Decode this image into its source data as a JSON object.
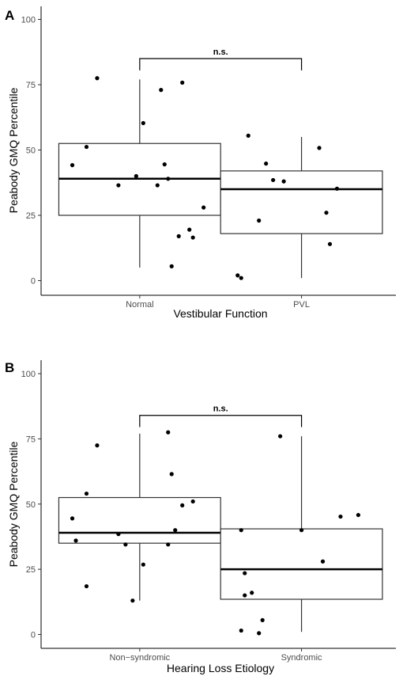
{
  "chart_data": [
    {
      "type": "box",
      "panel_label": "A",
      "xlabel": "Vestibular Function",
      "ylabel": "Peabody GMQ Percentile",
      "ylim": [
        0,
        100
      ],
      "yticks": [
        0,
        25,
        50,
        75,
        100
      ],
      "categories": [
        "Normal",
        "PVL"
      ],
      "significance": {
        "label": "n.s.",
        "from": "Normal",
        "to": "PVL",
        "y": 85
      },
      "boxes": [
        {
          "category": "Normal",
          "min": 5,
          "q1": 25,
          "median": 39,
          "q3": 52.5,
          "max": 77
        },
        {
          "category": "PVL",
          "min": 1,
          "q1": 18,
          "median": 35,
          "q3": 42,
          "max": 55
        }
      ],
      "points": [
        {
          "category": "Normal",
          "values": [
            77.5,
            75.8,
            73,
            60.3,
            51.2,
            44.2,
            44.5,
            40,
            39,
            36.5,
            36.5,
            28,
            19.5,
            17,
            16.5,
            5.5
          ],
          "jitter": [
            -0.12,
            0.12,
            0.06,
            0.01,
            -0.15,
            -0.19,
            0.07,
            -0.01,
            0.08,
            -0.06,
            0.05,
            0.18,
            0.14,
            0.11,
            0.15,
            0.09
          ]
        }
      ],
      "points_pvl": {
        "category": "PVL",
        "values": [
          55.5,
          50.8,
          44.8,
          38.5,
          38,
          35.2,
          26,
          23,
          14,
          2,
          1
        ],
        "jitter": [
          -0.15,
          0.05,
          -0.1,
          -0.08,
          -0.05,
          0.1,
          0.07,
          -0.12,
          0.08,
          -0.18,
          -0.17
        ]
      }
    },
    {
      "type": "box",
      "panel_label": "B",
      "xlabel": "Hearing Loss Etiology",
      "ylabel": "Peabody GMQ Percentile",
      "ylim": [
        0,
        100
      ],
      "yticks": [
        0,
        25,
        50,
        75,
        100
      ],
      "categories": [
        "Non−syndromic",
        "Syndromic"
      ],
      "significance": {
        "label": "n.s.",
        "from": "Non−syndromic",
        "to": "Syndromic",
        "y": 84
      },
      "boxes": [
        {
          "category": "Non−syndromic",
          "min": 13,
          "q1": 35,
          "median": 39,
          "q3": 52.5,
          "max": 77
        },
        {
          "category": "Syndromic",
          "min": 1,
          "q1": 13.5,
          "median": 25,
          "q3": 40.5,
          "max": 76
        }
      ],
      "points": [
        {
          "category": "Non−syndromic",
          "values": [
            77.5,
            72.5,
            61.5,
            54,
            51,
            49.5,
            44.5,
            40,
            38.5,
            36,
            34.5,
            34.5,
            26.8,
            18.5,
            13
          ],
          "jitter": [
            0.08,
            -0.12,
            0.09,
            -0.15,
            0.15,
            0.12,
            -0.19,
            0.1,
            -0.06,
            -0.18,
            0.08,
            -0.04,
            0.01,
            -0.15,
            -0.02
          ]
        }
      ],
      "points_pvl": {
        "category": "Syndromic",
        "values": [
          76,
          45.8,
          45.2,
          40,
          40,
          28,
          23.5,
          16,
          15,
          5.5,
          1.5,
          0.5
        ],
        "jitter": [
          -0.06,
          0.16,
          0.11,
          -0.17,
          0,
          0.06,
          -0.16,
          -0.14,
          -0.16,
          -0.11,
          -0.17,
          -0.12
        ]
      }
    }
  ]
}
